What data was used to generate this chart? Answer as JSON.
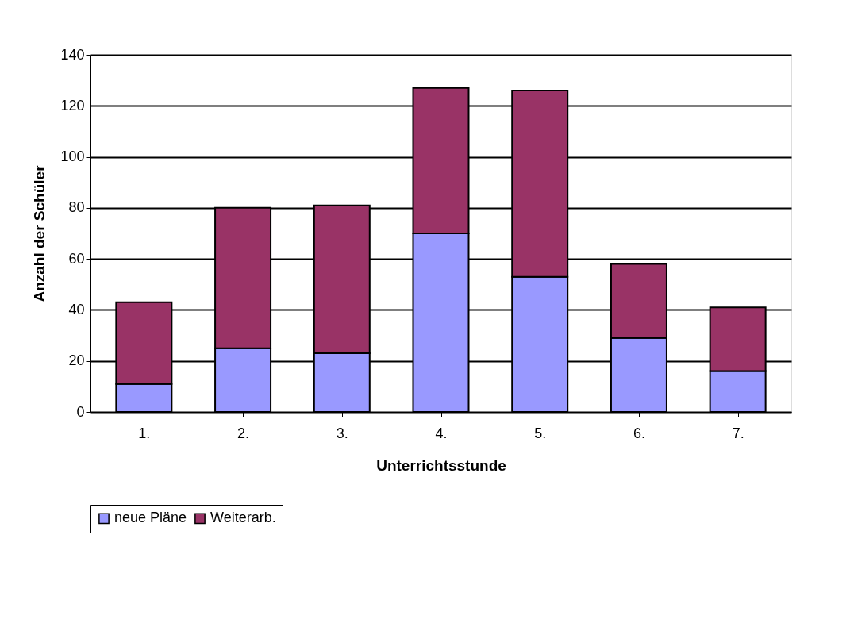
{
  "chart_data": {
    "type": "bar",
    "stacked": true,
    "xlabel": "Unterrichtsstunde",
    "ylabel": "Anzahl der Schüler",
    "categories": [
      "1.",
      "2.",
      "3.",
      "4.",
      "5.",
      "6.",
      "7."
    ],
    "series": [
      {
        "name": "neue Pläne",
        "color": "#9999ff",
        "values": [
          11,
          25,
          23,
          70,
          53,
          29,
          16
        ]
      },
      {
        "name": "Weiterarb.",
        "color": "#993366",
        "values": [
          32,
          55,
          58,
          57,
          73,
          29,
          25
        ]
      }
    ],
    "ylim": [
      0,
      140
    ],
    "yticks": [
      0,
      20,
      40,
      60,
      80,
      100,
      120,
      140
    ],
    "grid": "y",
    "legend": "bottom"
  }
}
